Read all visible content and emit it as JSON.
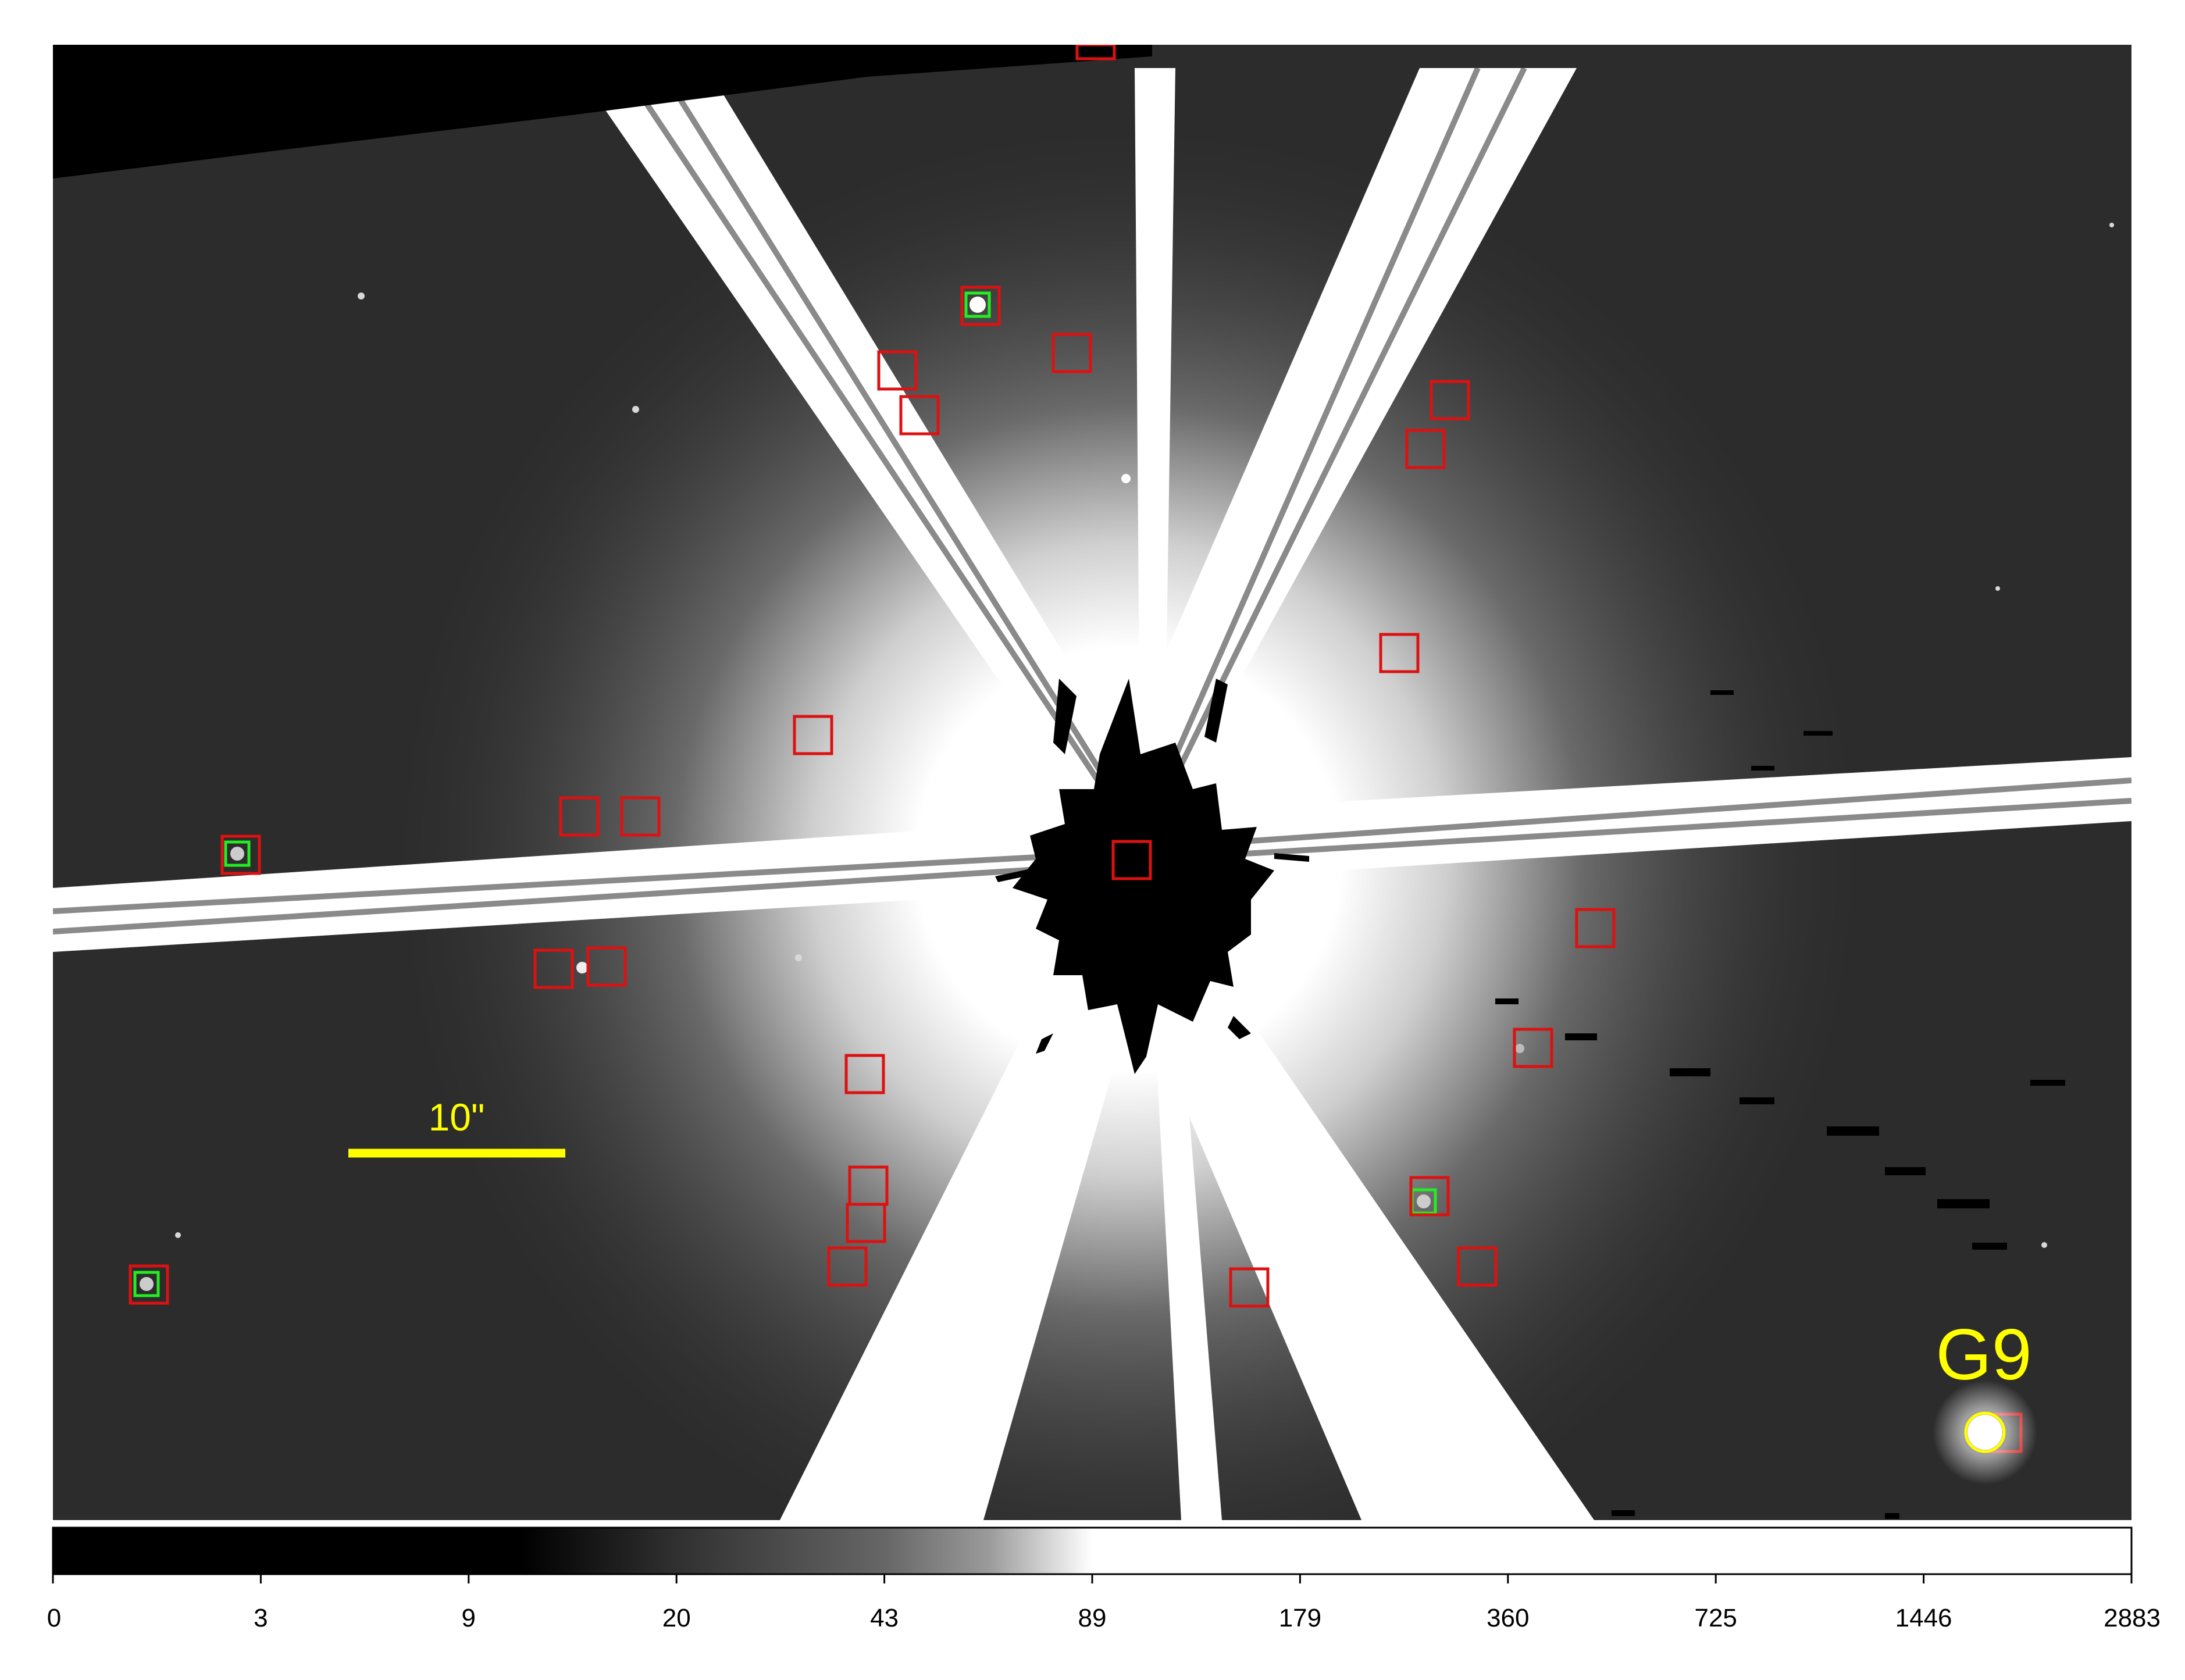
{
  "image": {
    "scale_bar_label": "10\"",
    "object_label": "G9",
    "colors": {
      "annotation_text": "#ffff00",
      "region_box": "#dd1111",
      "source_marker": "#22ee22",
      "target_circle": "#ffff00",
      "background_black": "#000000",
      "saturation_white": "#ffffff"
    }
  },
  "colorbar": {
    "scale": "log",
    "ticks": [
      "0",
      "3",
      "9",
      "20",
      "43",
      "89",
      "179",
      "360",
      "725",
      "1446",
      "2883"
    ]
  }
}
